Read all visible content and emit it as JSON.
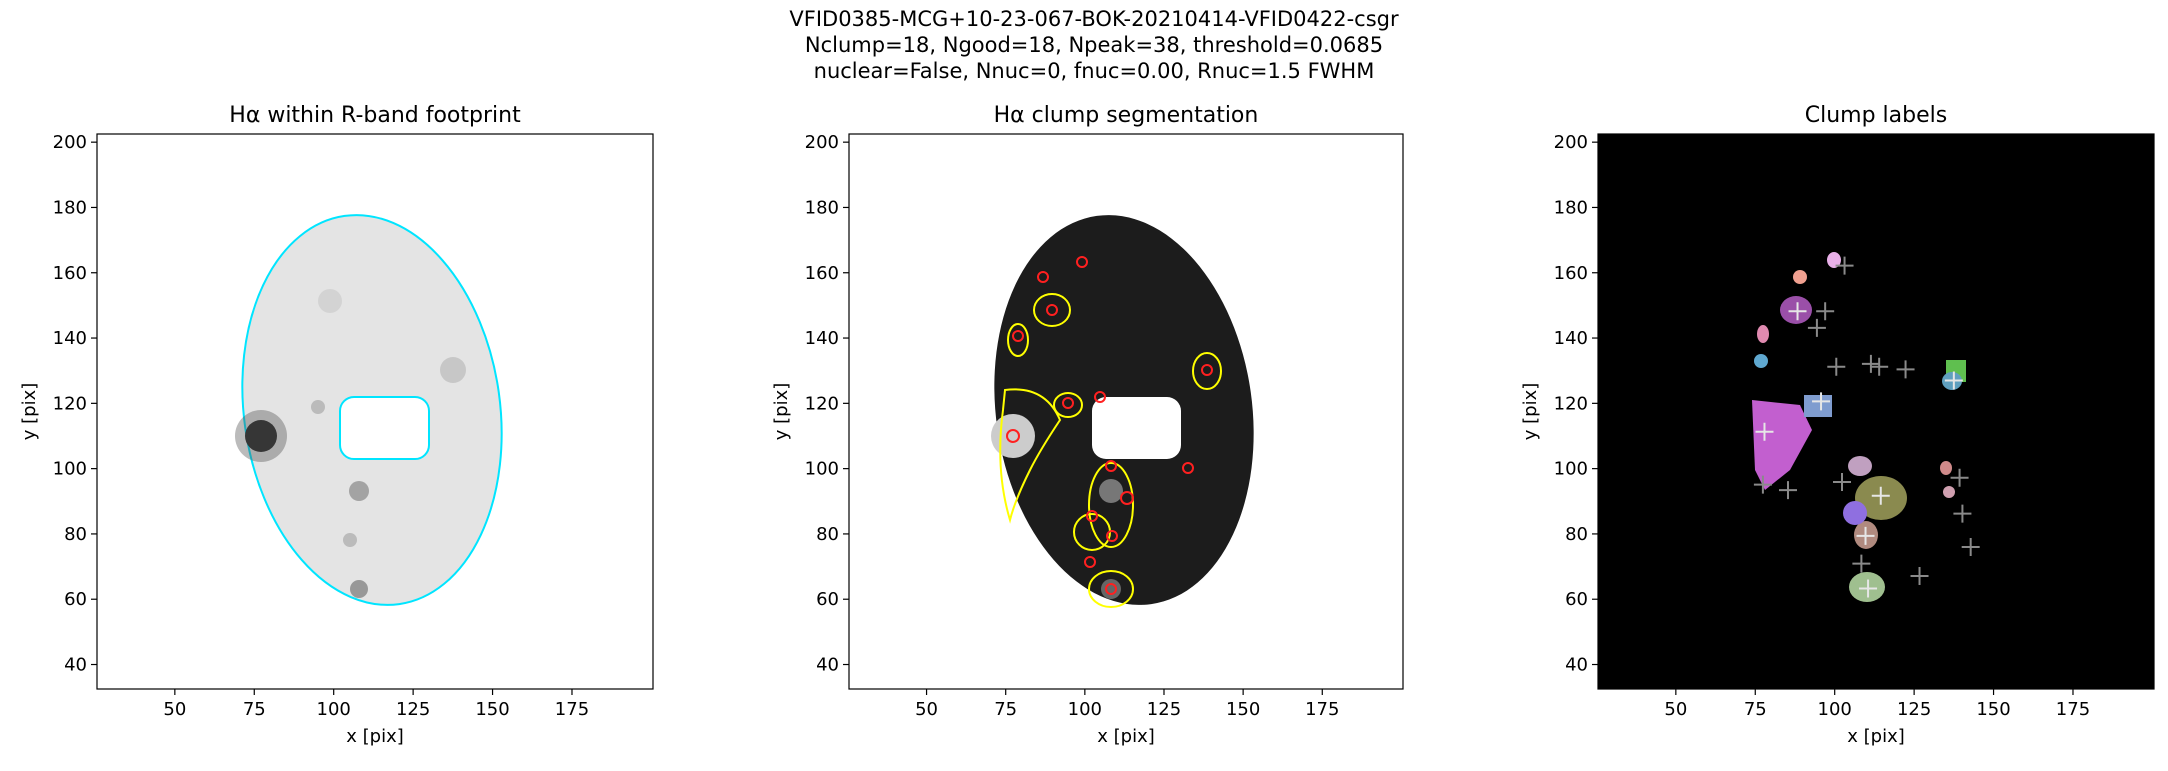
{
  "suptitle": [
    "VFID0385-MCG+10-23-067-BOK-20210414-VFID0422-csgr",
    "Nclump=18, Ngood=18, Npeak=38, threshold=0.0685",
    "nuclear=False, Nnuc=0, fnuc=0.00, Rnuc=1.5 FWHM"
  ],
  "chart_data": [
    {
      "type": "image",
      "title": "Hα within R-band footprint",
      "xlabel": "x [pix]",
      "ylabel": "y [pix]",
      "xlim": [
        25.5,
        200.5
      ],
      "ylim": [
        32.5,
        202.5
      ],
      "xticks": [
        50,
        75,
        100,
        125,
        150,
        175
      ],
      "yticks": [
        40,
        60,
        80,
        100,
        120,
        140,
        160,
        180,
        200
      ]
    },
    {
      "type": "image",
      "title": "Hα clump segmentation",
      "xlabel": "x [pix]",
      "ylabel": "y [pix]",
      "xlim": [
        25.5,
        200.5
      ],
      "ylim": [
        32.5,
        202.5
      ],
      "xticks": [
        50,
        75,
        100,
        125,
        150,
        175
      ],
      "yticks": [
        40,
        60,
        80,
        100,
        120,
        140,
        160,
        180,
        200
      ]
    },
    {
      "type": "scatter",
      "title": "Clump labels",
      "xlabel": "x [pix]",
      "ylabel": "y [pix]",
      "xlim": [
        25.5,
        200.5
      ],
      "ylim": [
        32.5,
        202.5
      ],
      "xticks": [
        50,
        75,
        100,
        125,
        150,
        175
      ],
      "yticks": [
        40,
        60,
        80,
        100,
        120,
        140,
        160,
        180,
        200
      ],
      "series": [
        {
          "color": "#8a8a8a",
          "x": [
            103.1,
            97.0,
            94.4,
            100.5,
            111.4,
            114.0,
            122.3,
            77.4,
            85.3,
            139.3,
            140.2,
            142.8,
            126.7,
            108.4,
            102.3
          ],
          "values": [
            162.2,
            148.2,
            143.1,
            131.2,
            132.1,
            131.2,
            130.4,
            95.1,
            93.4,
            97.2,
            86.2,
            76.0,
            67.1,
            70.9,
            95.9
          ]
        },
        {
          "color": "#e6e6e6",
          "x": [
            77.9,
            95.7,
            137.5,
            88.3,
            114.5,
            109.7,
            110.5
          ],
          "values": [
            111.3,
            120.6,
            127.0,
            148.2,
            91.7,
            79.4,
            63.3
          ]
        }
      ]
    }
  ]
}
